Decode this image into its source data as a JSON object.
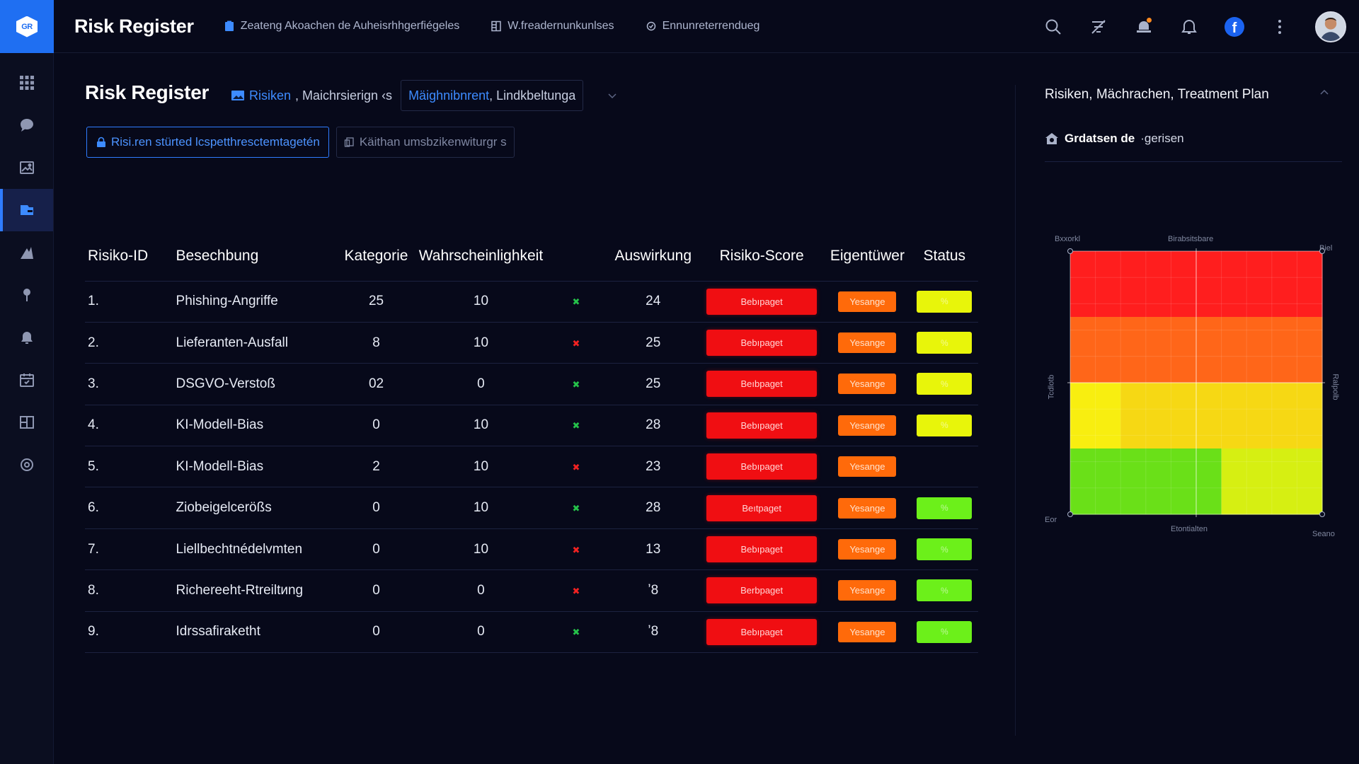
{
  "app": {
    "title": "Risk Register",
    "logo_text": "GR"
  },
  "topbar": {
    "tabs": [
      {
        "label": "Zeateng Akoachen de Auheisrhhgerfiégeles",
        "icon": "clipboard-icon"
      },
      {
        "label": "W.freadernunkunlses",
        "icon": "document-icon"
      },
      {
        "label": "Ennunreterrendueg",
        "icon": "settings-circle-icon"
      }
    ],
    "icons": [
      "search-icon",
      "filter-icon",
      "alert-icon",
      "bell-icon",
      "facebook-icon",
      "more-icon",
      "avatar"
    ]
  },
  "sidebar": {
    "items": [
      {
        "icon": "grid-icon",
        "active": false
      },
      {
        "icon": "chat-icon",
        "active": false
      },
      {
        "icon": "image-icon",
        "active": false
      },
      {
        "icon": "risk-register-icon",
        "active": true
      },
      {
        "icon": "chart-icon",
        "active": false
      },
      {
        "icon": "pin-icon",
        "active": false
      },
      {
        "icon": "alarm-icon",
        "active": false
      },
      {
        "icon": "calendar-icon",
        "active": false
      },
      {
        "icon": "layout-icon",
        "active": false
      },
      {
        "icon": "settings-icon",
        "active": false
      }
    ]
  },
  "main": {
    "page_title": "Risk Register",
    "breadcrumb": {
      "link": "Risiken",
      "rest": ", Maichrsierign ‹s",
      "box_link": "Mäighnibnrent",
      "box_rest": ", Lindkbeltunga"
    },
    "buttons": {
      "primary": "Risi.ren stürted lcspetthresctemtagetén",
      "secondary": "Käithan umsbzikenwiturgr s"
    },
    "table": {
      "headers": [
        "Risiko-ID",
        "Besechbung",
        "Kategorie",
        "Wahrscheinlighkeit",
        "",
        "Auswirkung",
        "Risiko-Score",
        "Eigentüwer",
        "Status"
      ],
      "rows": [
        {
          "id": "1.",
          "desc": "Phishing-Angriffe",
          "kat": "25",
          "wahr": "10",
          "mark": "✖",
          "mark_ok": true,
          "ausw": "24",
          "score": "Bebıpaget",
          "owner": "Yesange",
          "status": "%",
          "status_color": "#e8f50a"
        },
        {
          "id": "2.",
          "desc": "Lieferanten-Ausfall",
          "kat": "8",
          "wahr": "10",
          "mark": "✖",
          "mark_ok": false,
          "ausw": "25",
          "score": "Bebıpaget",
          "owner": "Yesange",
          "status": "%",
          "status_color": "#e8f50a"
        },
        {
          "id": "3.",
          "desc": "DSGVO-Verstoß",
          "kat": "02",
          "wahr": "0",
          "mark": "✖",
          "mark_ok": true,
          "ausw": "25",
          "score": "Beıbpaget",
          "owner": "Yesange",
          "status": "%",
          "status_color": "#e8f50a"
        },
        {
          "id": "4.",
          "desc": "KI-Modell-Bias",
          "kat": "0",
          "wahr": "10",
          "mark": "✖",
          "mark_ok": true,
          "ausw": "28",
          "score": "Bebıpaget",
          "owner": "Yesange",
          "status": "%",
          "status_color": "#e8f50a"
        },
        {
          "id": "5.",
          "desc": "KI-Modell-Bias",
          "kat": "2",
          "wahr": "10",
          "mark": "✖",
          "mark_ok": false,
          "ausw": "23",
          "score": "Bebıpaget",
          "owner": "Yesange",
          "status": "",
          "status_color": ""
        },
        {
          "id": "6.",
          "desc": "Ziobeigelcerößs",
          "kat": "0",
          "wahr": "10",
          "mark": "✖",
          "mark_ok": true,
          "ausw": "28",
          "score": "Beıtpaget",
          "owner": "Yesange",
          "status": "%",
          "status_color": "#6cf01a"
        },
        {
          "id": "7.",
          "desc": "Liellbechtnédelvmten",
          "kat": "0",
          "wahr": "10",
          "mark": "✖",
          "mark_ok": false,
          "ausw": "13",
          "score": "Bebıpaget",
          "owner": "Yesange",
          "status": "%",
          "status_color": "#6cf01a"
        },
        {
          "id": "8.",
          "desc": "Richereeht-Rtreiltиng",
          "kat": "0",
          "wahr": "0",
          "mark": "✖",
          "mark_ok": false,
          "ausw": "ʼ8",
          "score": "Berbpaget",
          "owner": "Yesange",
          "status": "%",
          "status_color": "#6cf01a"
        },
        {
          "id": "9.",
          "desc": "Idrssafiraketht",
          "kat": "0",
          "wahr": "0",
          "mark": "✖",
          "mark_ok": true,
          "ausw": "ʼ8",
          "score": "Bebıpaget",
          "owner": "Yesange",
          "status": "%",
          "status_color": "#6cf01a"
        }
      ]
    }
  },
  "right_panel": {
    "title": "Risiken, Mächrachen, Treatment Plan",
    "subtitle_bold": "Grdatsen de",
    "subtitle_rest": "·gerisen",
    "heatmap": {
      "labels": {
        "top_left": "Bxxorkl",
        "top_center": "Birabsitsbare",
        "top_right": "Biel",
        "bottom_left": "Eor",
        "bottom_center": "Etontialten",
        "bottom_right": "Seano",
        "left_side": "Tcdlotb",
        "right_side": "Ralpolb"
      },
      "grid": [
        [
          "#ff1e1e",
          "#ff1e1e",
          "#ff1e1e",
          "#ff1e1e",
          "#ff1e1e"
        ],
        [
          "#ff6619",
          "#ff6619",
          "#ff6619",
          "#ff6619",
          "#ff6619"
        ],
        [
          "#f8ee10",
          "#f6d814",
          "#f6d814",
          "#f6d814",
          "#f6d814"
        ],
        [
          "#6ae018",
          "#6ae018",
          "#6ae018",
          "#d6ef12",
          "#d6ef12"
        ]
      ],
      "colors": {
        "red": "#ff1e1e",
        "orange": "#ff6619",
        "yellow": "#f6d814",
        "green": "#6ae018"
      }
    }
  }
}
